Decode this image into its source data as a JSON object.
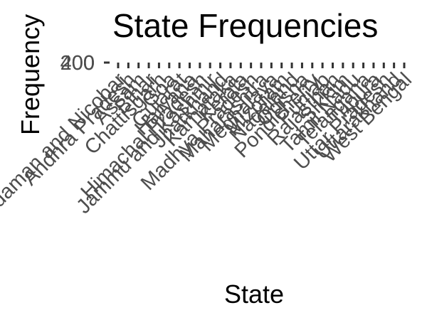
{
  "chart_data": {
    "type": "bar",
    "title": "State Frequencies",
    "xlabel": "State",
    "ylabel": "Frequency",
    "y_tick_labels": [
      "0",
      "200",
      "400"
    ],
    "categories": [
      "Andaman and Nicobar",
      "Andhra Pradesh",
      "Assam",
      "Bihar",
      "Chattisgarh",
      "Goa",
      "Gujarat",
      "Haryana",
      "Himachal Pradesh",
      "Jammu and Kashmir",
      "Jharkhand",
      "Karnataka",
      "Kerala",
      "Madhya Pradesh",
      "Maharashtra",
      "Meghalaya",
      "Mizoram",
      "Nagaland",
      "Odisha",
      "Pondicherry",
      "Punjab",
      "Rajasthan",
      "Sikkim",
      "Tamil Nadu",
      "Telangana",
      "Tripura",
      "Uttar Pradesh",
      "Uttarakhand",
      "West Bengal"
    ],
    "grid": false,
    "colors": {
      "text": "#000000",
      "tick_text": "#4d4d4d",
      "tick_mark": "#333333"
    }
  }
}
